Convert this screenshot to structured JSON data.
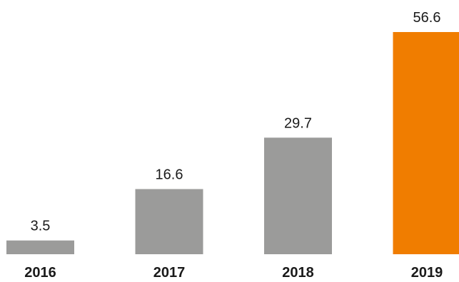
{
  "chart_data": {
    "type": "bar",
    "categories": [
      "2016",
      "2017",
      "2018",
      "2019"
    ],
    "values": [
      3.5,
      16.6,
      29.7,
      56.6
    ],
    "value_labels": [
      "3.5",
      "16.6",
      "29.7",
      "56.6"
    ],
    "title": "",
    "xlabel": "",
    "ylabel": "",
    "ylim": [
      0,
      56.6
    ],
    "grid": false,
    "legend": "none",
    "colors": {
      "default": "#9b9b9a",
      "highlight": "#f07d00"
    },
    "highlight_index": 3
  }
}
